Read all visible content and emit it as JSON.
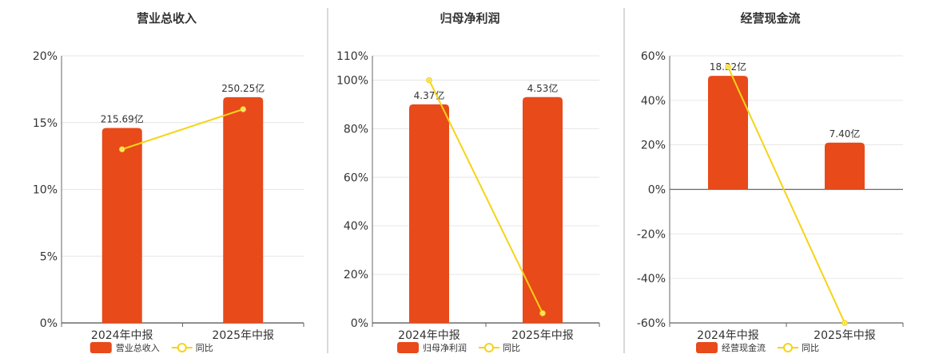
{
  "colors": {
    "bar": "#e84a1a",
    "line": "#f5d417",
    "grid": "#e6e6e6",
    "axis": "#666666",
    "divider": "#b0b0b0",
    "title": "#333333",
    "tick": "#333333"
  },
  "chart_data": [
    {
      "type": "bar",
      "title": "营业总收入",
      "categories": [
        "2024年中报",
        "2025年中报"
      ],
      "y_axis": {
        "ticks": [
          "0%",
          "5%",
          "10%",
          "15%",
          "20%"
        ],
        "ylim": [
          0,
          20
        ]
      },
      "series": [
        {
          "name": "营业总收入",
          "kind": "bar",
          "values": [
            14.6,
            16.9
          ],
          "labels": [
            "215.69亿",
            "250.25亿"
          ]
        },
        {
          "name": "同比",
          "kind": "line",
          "values": [
            13.0,
            16.0
          ]
        }
      ],
      "legend_position": "bottom"
    },
    {
      "type": "bar",
      "title": "归母净利润",
      "categories": [
        "2024年中报",
        "2025年中报"
      ],
      "y_axis": {
        "ticks": [
          "0%",
          "20%",
          "40%",
          "60%",
          "80%",
          "100%",
          "110%"
        ],
        "ylim": [
          0,
          110
        ]
      },
      "series": [
        {
          "name": "归母净利润",
          "kind": "bar",
          "values": [
            90,
            93
          ],
          "labels": [
            "4.37亿",
            "4.53亿"
          ]
        },
        {
          "name": "同比",
          "kind": "line",
          "values": [
            100,
            4
          ]
        }
      ],
      "legend_position": "bottom"
    },
    {
      "type": "bar",
      "title": "经营现金流",
      "categories": [
        "2024年中报",
        "2025年中报"
      ],
      "y_axis": {
        "ticks": [
          "-60%",
          "-40%",
          "-20%",
          "0%",
          "20%",
          "40%",
          "60%"
        ],
        "ylim": [
          -60,
          60
        ]
      },
      "series": [
        {
          "name": "经营现金流",
          "kind": "bar",
          "values": [
            51,
            21
          ],
          "labels": [
            "18.32亿",
            "7.40亿"
          ]
        },
        {
          "name": "同比",
          "kind": "line",
          "values": [
            55,
            -60
          ]
        }
      ],
      "legend_position": "bottom"
    }
  ]
}
